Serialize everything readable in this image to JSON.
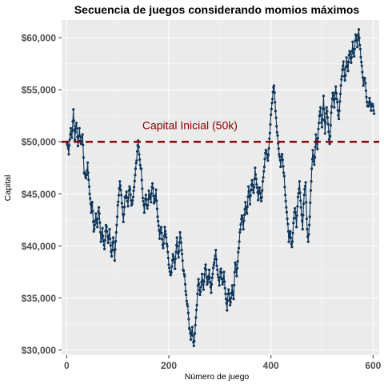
{
  "chart_data": {
    "type": "line",
    "title": "Secuencia de juegos considerando momios máximos",
    "xlabel": "Número de juego",
    "ylabel": "Capital",
    "xlim": [
      -10,
      612
    ],
    "ylim": [
      29500,
      61700
    ],
    "x_ticks": [
      0,
      200,
      400,
      600
    ],
    "x_tick_labels": [
      "0",
      "200",
      "400",
      "600"
    ],
    "y_ticks": [
      30000,
      35000,
      40000,
      45000,
      50000,
      55000,
      60000
    ],
    "y_tick_labels": [
      "$30,000",
      "$35,000",
      "$40,000",
      "$45,000",
      "$50,000",
      "$55,000",
      "$60,000"
    ],
    "grid": true,
    "legend": "none",
    "reference_line": {
      "y": 50000,
      "style": "dashed",
      "color": "#8b0000"
    },
    "annotation": {
      "text": "Capital Inicial (50k)",
      "x": 148,
      "y": 51600
    },
    "series": [
      {
        "color": "#0d3559",
        "marker": "point",
        "anchors": [
          [
            0,
            50000
          ],
          [
            4,
            48800
          ],
          [
            8,
            51300
          ],
          [
            10,
            50400
          ],
          [
            13,
            53100
          ],
          [
            16,
            50200
          ],
          [
            19,
            51800
          ],
          [
            22,
            49600
          ],
          [
            25,
            51300
          ],
          [
            28,
            49800
          ],
          [
            31,
            50700
          ],
          [
            34,
            47000
          ],
          [
            38,
            46500
          ],
          [
            41,
            48000
          ],
          [
            45,
            45000
          ],
          [
            48,
            43200
          ],
          [
            50,
            44200
          ],
          [
            53,
            41400
          ],
          [
            57,
            43100
          ],
          [
            60,
            41800
          ],
          [
            63,
            43700
          ],
          [
            67,
            40400
          ],
          [
            70,
            41700
          ],
          [
            74,
            39700
          ],
          [
            77,
            42000
          ],
          [
            81,
            40300
          ],
          [
            84,
            41600
          ],
          [
            88,
            39000
          ],
          [
            91,
            40800
          ],
          [
            94,
            38600
          ],
          [
            97,
            41300
          ],
          [
            100,
            43900
          ],
          [
            104,
            46200
          ],
          [
            108,
            44100
          ],
          [
            111,
            42300
          ],
          [
            114,
            44700
          ],
          [
            117,
            45200
          ],
          [
            120,
            43800
          ],
          [
            123,
            45700
          ],
          [
            127,
            43900
          ],
          [
            131,
            45300
          ],
          [
            134,
            46800
          ],
          [
            137,
            48200
          ],
          [
            140,
            50100
          ],
          [
            143,
            48300
          ],
          [
            146,
            47400
          ],
          [
            149,
            44600
          ],
          [
            152,
            43200
          ],
          [
            155,
            44900
          ],
          [
            158,
            43600
          ],
          [
            161,
            45300
          ],
          [
            165,
            44200
          ],
          [
            168,
            46000
          ],
          [
            171,
            44100
          ],
          [
            175,
            45400
          ],
          [
            178,
            42800
          ],
          [
            182,
            40700
          ],
          [
            185,
            41800
          ],
          [
            189,
            39800
          ],
          [
            192,
            41800
          ],
          [
            196,
            40200
          ],
          [
            200,
            38200
          ],
          [
            204,
            37200
          ],
          [
            208,
            39200
          ],
          [
            212,
            37800
          ],
          [
            216,
            40800
          ],
          [
            219,
            38900
          ],
          [
            222,
            41300
          ],
          [
            225,
            39600
          ],
          [
            228,
            37700
          ],
          [
            231,
            37100
          ],
          [
            234,
            35300
          ],
          [
            237,
            34200
          ],
          [
            240,
            32100
          ],
          [
            243,
            31000
          ],
          [
            246,
            32200
          ],
          [
            249,
            30400
          ],
          [
            252,
            32400
          ],
          [
            255,
            34300
          ],
          [
            258,
            36800
          ],
          [
            261,
            35300
          ],
          [
            265,
            37300
          ],
          [
            268,
            35800
          ],
          [
            272,
            38200
          ],
          [
            275,
            36300
          ],
          [
            279,
            37700
          ],
          [
            283,
            35500
          ],
          [
            286,
            37300
          ],
          [
            289,
            38400
          ],
          [
            292,
            39600
          ],
          [
            295,
            37700
          ],
          [
            299,
            36200
          ],
          [
            302,
            37800
          ],
          [
            305,
            36300
          ],
          [
            308,
            37500
          ],
          [
            311,
            35400
          ],
          [
            314,
            33800
          ],
          [
            317,
            35800
          ],
          [
            320,
            34300
          ],
          [
            324,
            36200
          ],
          [
            327,
            34900
          ],
          [
            330,
            38400
          ],
          [
            333,
            37100
          ],
          [
            336,
            39400
          ],
          [
            339,
            41300
          ],
          [
            343,
            42900
          ],
          [
            346,
            41600
          ],
          [
            350,
            44200
          ],
          [
            353,
            43100
          ],
          [
            356,
            45700
          ],
          [
            359,
            44000
          ],
          [
            363,
            46300
          ],
          [
            366,
            45100
          ],
          [
            369,
            47500
          ],
          [
            372,
            45900
          ],
          [
            375,
            44400
          ],
          [
            378,
            45600
          ],
          [
            381,
            44300
          ],
          [
            384,
            46200
          ],
          [
            387,
            47600
          ],
          [
            390,
            49200
          ],
          [
            394,
            48200
          ],
          [
            397,
            50300
          ],
          [
            400,
            52600
          ],
          [
            403,
            54100
          ],
          [
            406,
            55400
          ],
          [
            408,
            53800
          ],
          [
            410,
            52300
          ],
          [
            413,
            50600
          ],
          [
            416,
            48800
          ],
          [
            419,
            47600
          ],
          [
            422,
            48800
          ],
          [
            426,
            46700
          ],
          [
            429,
            44300
          ],
          [
            432,
            42600
          ],
          [
            435,
            40400
          ],
          [
            438,
            41400
          ],
          [
            441,
            39900
          ],
          [
            444,
            42200
          ],
          [
            447,
            43600
          ],
          [
            450,
            41800
          ],
          [
            453,
            44700
          ],
          [
            456,
            46200
          ],
          [
            459,
            43700
          ],
          [
            462,
            41600
          ],
          [
            465,
            44900
          ],
          [
            468,
            46100
          ],
          [
            470,
            42600
          ],
          [
            473,
            40400
          ],
          [
            476,
            42800
          ],
          [
            479,
            46200
          ],
          [
            482,
            49200
          ],
          [
            485,
            47800
          ],
          [
            488,
            50700
          ],
          [
            491,
            49300
          ],
          [
            494,
            51800
          ],
          [
            497,
            53300
          ],
          [
            500,
            51400
          ],
          [
            503,
            54400
          ],
          [
            506,
            50800
          ],
          [
            509,
            53300
          ],
          [
            512,
            51700
          ],
          [
            515,
            49800
          ],
          [
            518,
            52800
          ],
          [
            521,
            54700
          ],
          [
            524,
            53300
          ],
          [
            527,
            55300
          ],
          [
            530,
            53800
          ],
          [
            533,
            52200
          ],
          [
            536,
            54600
          ],
          [
            539,
            56300
          ],
          [
            542,
            57700
          ],
          [
            545,
            55900
          ],
          [
            548,
            58100
          ],
          [
            551,
            56800
          ],
          [
            554,
            58700
          ],
          [
            557,
            57600
          ],
          [
            560,
            59600
          ],
          [
            563,
            58200
          ],
          [
            566,
            60300
          ],
          [
            569,
            59100
          ],
          [
            572,
            60800
          ],
          [
            575,
            58900
          ],
          [
            578,
            57300
          ],
          [
            581,
            55400
          ],
          [
            584,
            56100
          ],
          [
            587,
            54300
          ],
          [
            590,
            53400
          ],
          [
            593,
            54200
          ],
          [
            596,
            53000
          ],
          [
            599,
            53600
          ],
          [
            602,
            52700
          ]
        ]
      }
    ]
  }
}
